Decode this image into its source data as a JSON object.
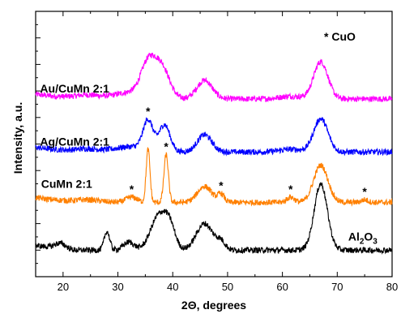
{
  "chart_data": {
    "type": "line",
    "title": "",
    "xlabel": "2Θ, degrees",
    "ylabel": "Intensity, a.u.",
    "xlim": [
      15,
      80
    ],
    "ylim": [
      0,
      100
    ],
    "x_ticks": [
      20,
      30,
      40,
      50,
      60,
      70,
      80
    ],
    "y_ticks_shown": false,
    "grid": false,
    "legend": "none",
    "annotation": "* CuO",
    "series": [
      {
        "name": "Au/CuMn 2:1",
        "color": "#ff00ff",
        "label_x": 15.8,
        "label_offset": 8,
        "baseline": 67,
        "peaks": [
          [
            24.0,
            1.5,
            2.5
          ],
          [
            32.5,
            2.5,
            3.0
          ],
          [
            35.5,
            12.0,
            1.3
          ],
          [
            38.0,
            11.5,
            1.4
          ],
          [
            45.8,
            7.0,
            1.4
          ],
          [
            61.5,
            1.0,
            2.0
          ],
          [
            67.0,
            14.0,
            1.3
          ]
        ],
        "stars": []
      },
      {
        "name": "Ag/CuMn 2:1",
        "color": "#0000ff",
        "label_x": 15.8,
        "label_offset": 8,
        "baseline": 47,
        "peaks": [
          [
            24.0,
            1.2,
            2.5
          ],
          [
            32.5,
            2.0,
            3.0
          ],
          [
            35.5,
            11.0,
            0.9
          ],
          [
            38.5,
            10.0,
            1.0
          ],
          [
            45.8,
            6.5,
            1.3
          ],
          [
            61.5,
            1.0,
            2.0
          ],
          [
            67.0,
            12.5,
            1.3
          ]
        ],
        "stars": [
          [
            35.5,
            "*"
          ]
        ]
      },
      {
        "name": "CuMn 2:1",
        "color": "#ff8000",
        "label_x": 16.0,
        "label_offset": 18,
        "baseline": 28,
        "peaks": [
          [
            24.0,
            1.0,
            2.5
          ],
          [
            32.5,
            2.0,
            1.0
          ],
          [
            35.5,
            20.0,
            0.35
          ],
          [
            38.8,
            18.0,
            0.4
          ],
          [
            45.8,
            6.0,
            1.3
          ],
          [
            48.8,
            3.0,
            0.6
          ],
          [
            61.5,
            2.0,
            0.7
          ],
          [
            67.0,
            14.0,
            1.3
          ],
          [
            75.0,
            1.0,
            0.6
          ]
        ],
        "stars": [
          [
            32.5,
            "*"
          ],
          [
            38.8,
            "*"
          ],
          [
            48.8,
            "*"
          ],
          [
            61.5,
            "*"
          ],
          [
            75.0,
            "*"
          ]
        ]
      },
      {
        "name": "Al2O3",
        "label_main": "Al",
        "label_sub": "2",
        "label_main2": "O",
        "label_sub2": "3",
        "color": "#000000",
        "label_x": 72.0,
        "label_offset": 12,
        "baseline": 10,
        "peaks": [
          [
            19.5,
            2.0,
            1.0
          ],
          [
            28.0,
            7.0,
            0.5
          ],
          [
            32.0,
            3.0,
            1.0
          ],
          [
            37.5,
            13.0,
            1.5
          ],
          [
            39.5,
            7.0,
            1.0
          ],
          [
            45.8,
            10.0,
            1.5
          ],
          [
            48.8,
            3.0,
            0.8
          ],
          [
            67.0,
            25.0,
            1.2
          ]
        ],
        "stars": []
      }
    ]
  }
}
